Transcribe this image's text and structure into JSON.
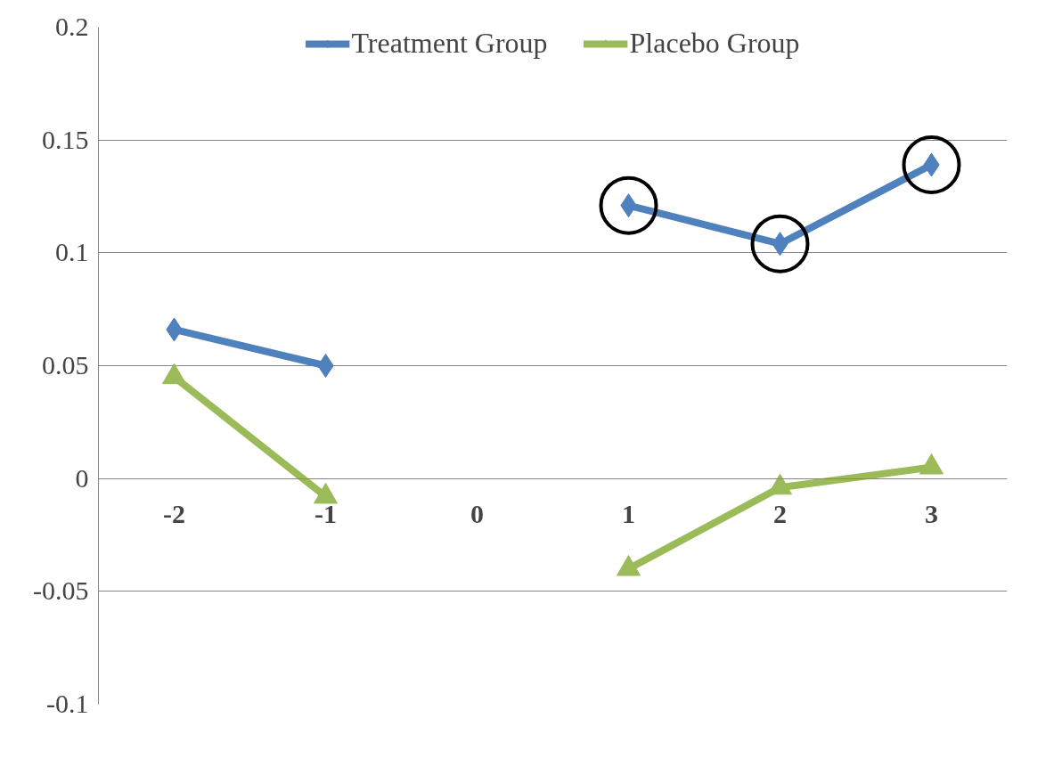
{
  "chart_data": {
    "type": "line",
    "categories": [
      "-2",
      "-1",
      "0",
      "1",
      "2",
      "3"
    ],
    "series": [
      {
        "name": "Treatment Group",
        "color": "#4f81bd",
        "marker": "diamond",
        "values": [
          0.066,
          0.05,
          null,
          0.121,
          0.104,
          0.139
        ]
      },
      {
        "name": "Placebo Group",
        "color": "#9bbb59",
        "marker": "triangle",
        "values": [
          0.045,
          -0.008,
          null,
          -0.04,
          -0.004,
          0.005
        ]
      },
      {
        "type": "scatter",
        "color": "#000000",
        "marker": "circle",
        "values": [
          null,
          null,
          null,
          0.121,
          0.104,
          0.139
        ]
      }
    ],
    "ylim": [
      -0.1,
      0.2
    ],
    "yticks": [
      -0.1,
      -0.05,
      0,
      0.05,
      0.1,
      0.15,
      0.2
    ],
    "grid": "y",
    "legend": "top"
  }
}
